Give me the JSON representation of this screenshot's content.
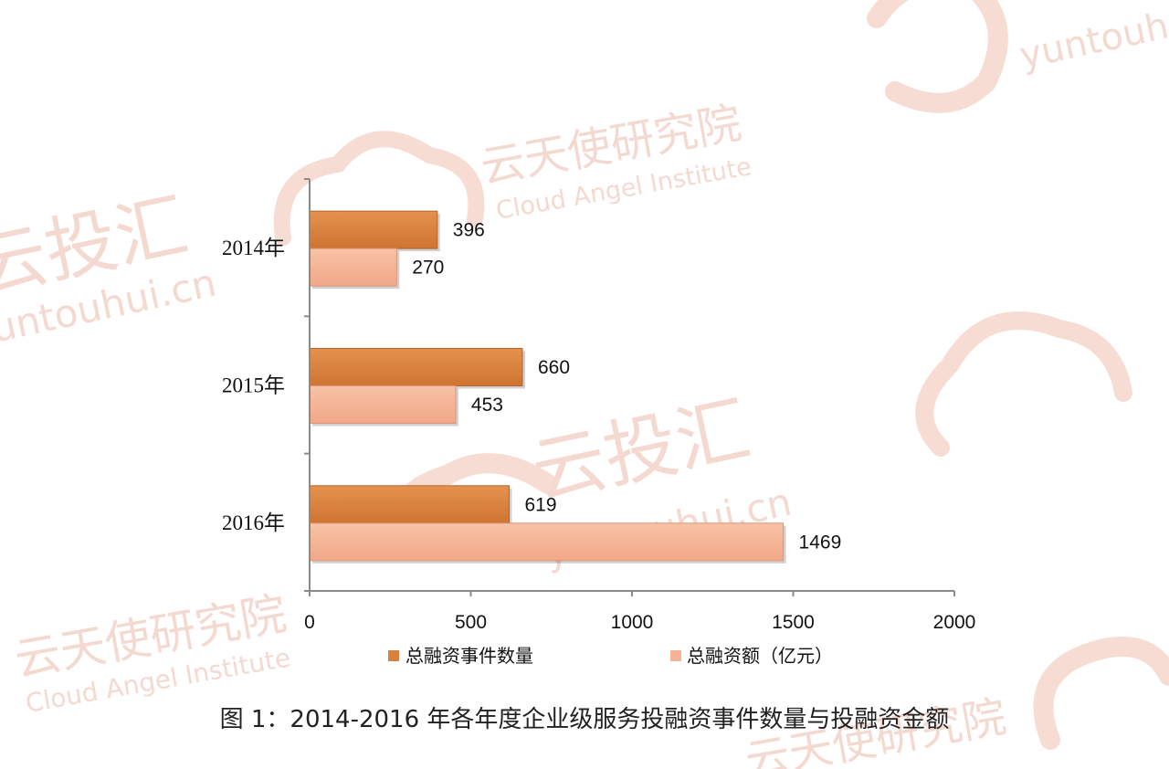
{
  "watermarks": {
    "brand_cn": "云投汇",
    "brand_url": "yuntouhui.cn",
    "institute_cn": "云天使研究院",
    "institute_en": "Cloud Angel Institute"
  },
  "chart_data": {
    "type": "bar",
    "orientation": "horizontal",
    "categories": [
      "2014年",
      "2015年",
      "2016年"
    ],
    "series": [
      {
        "name": "总融资事件数量",
        "values": [
          396,
          660,
          619
        ],
        "color": "#d9803d"
      },
      {
        "name": "总融资额（亿元）",
        "values": [
          270,
          453,
          1469
        ],
        "color": "#f5b495"
      }
    ],
    "xlim": [
      0,
      2000
    ],
    "xticks": [
      "0",
      "500",
      "1000",
      "1500",
      "2000"
    ],
    "grid": false,
    "legend_position": "bottom"
  },
  "caption": "图 1：2014-2016 年各年度企业级服务投融资事件数量与投融资金额"
}
